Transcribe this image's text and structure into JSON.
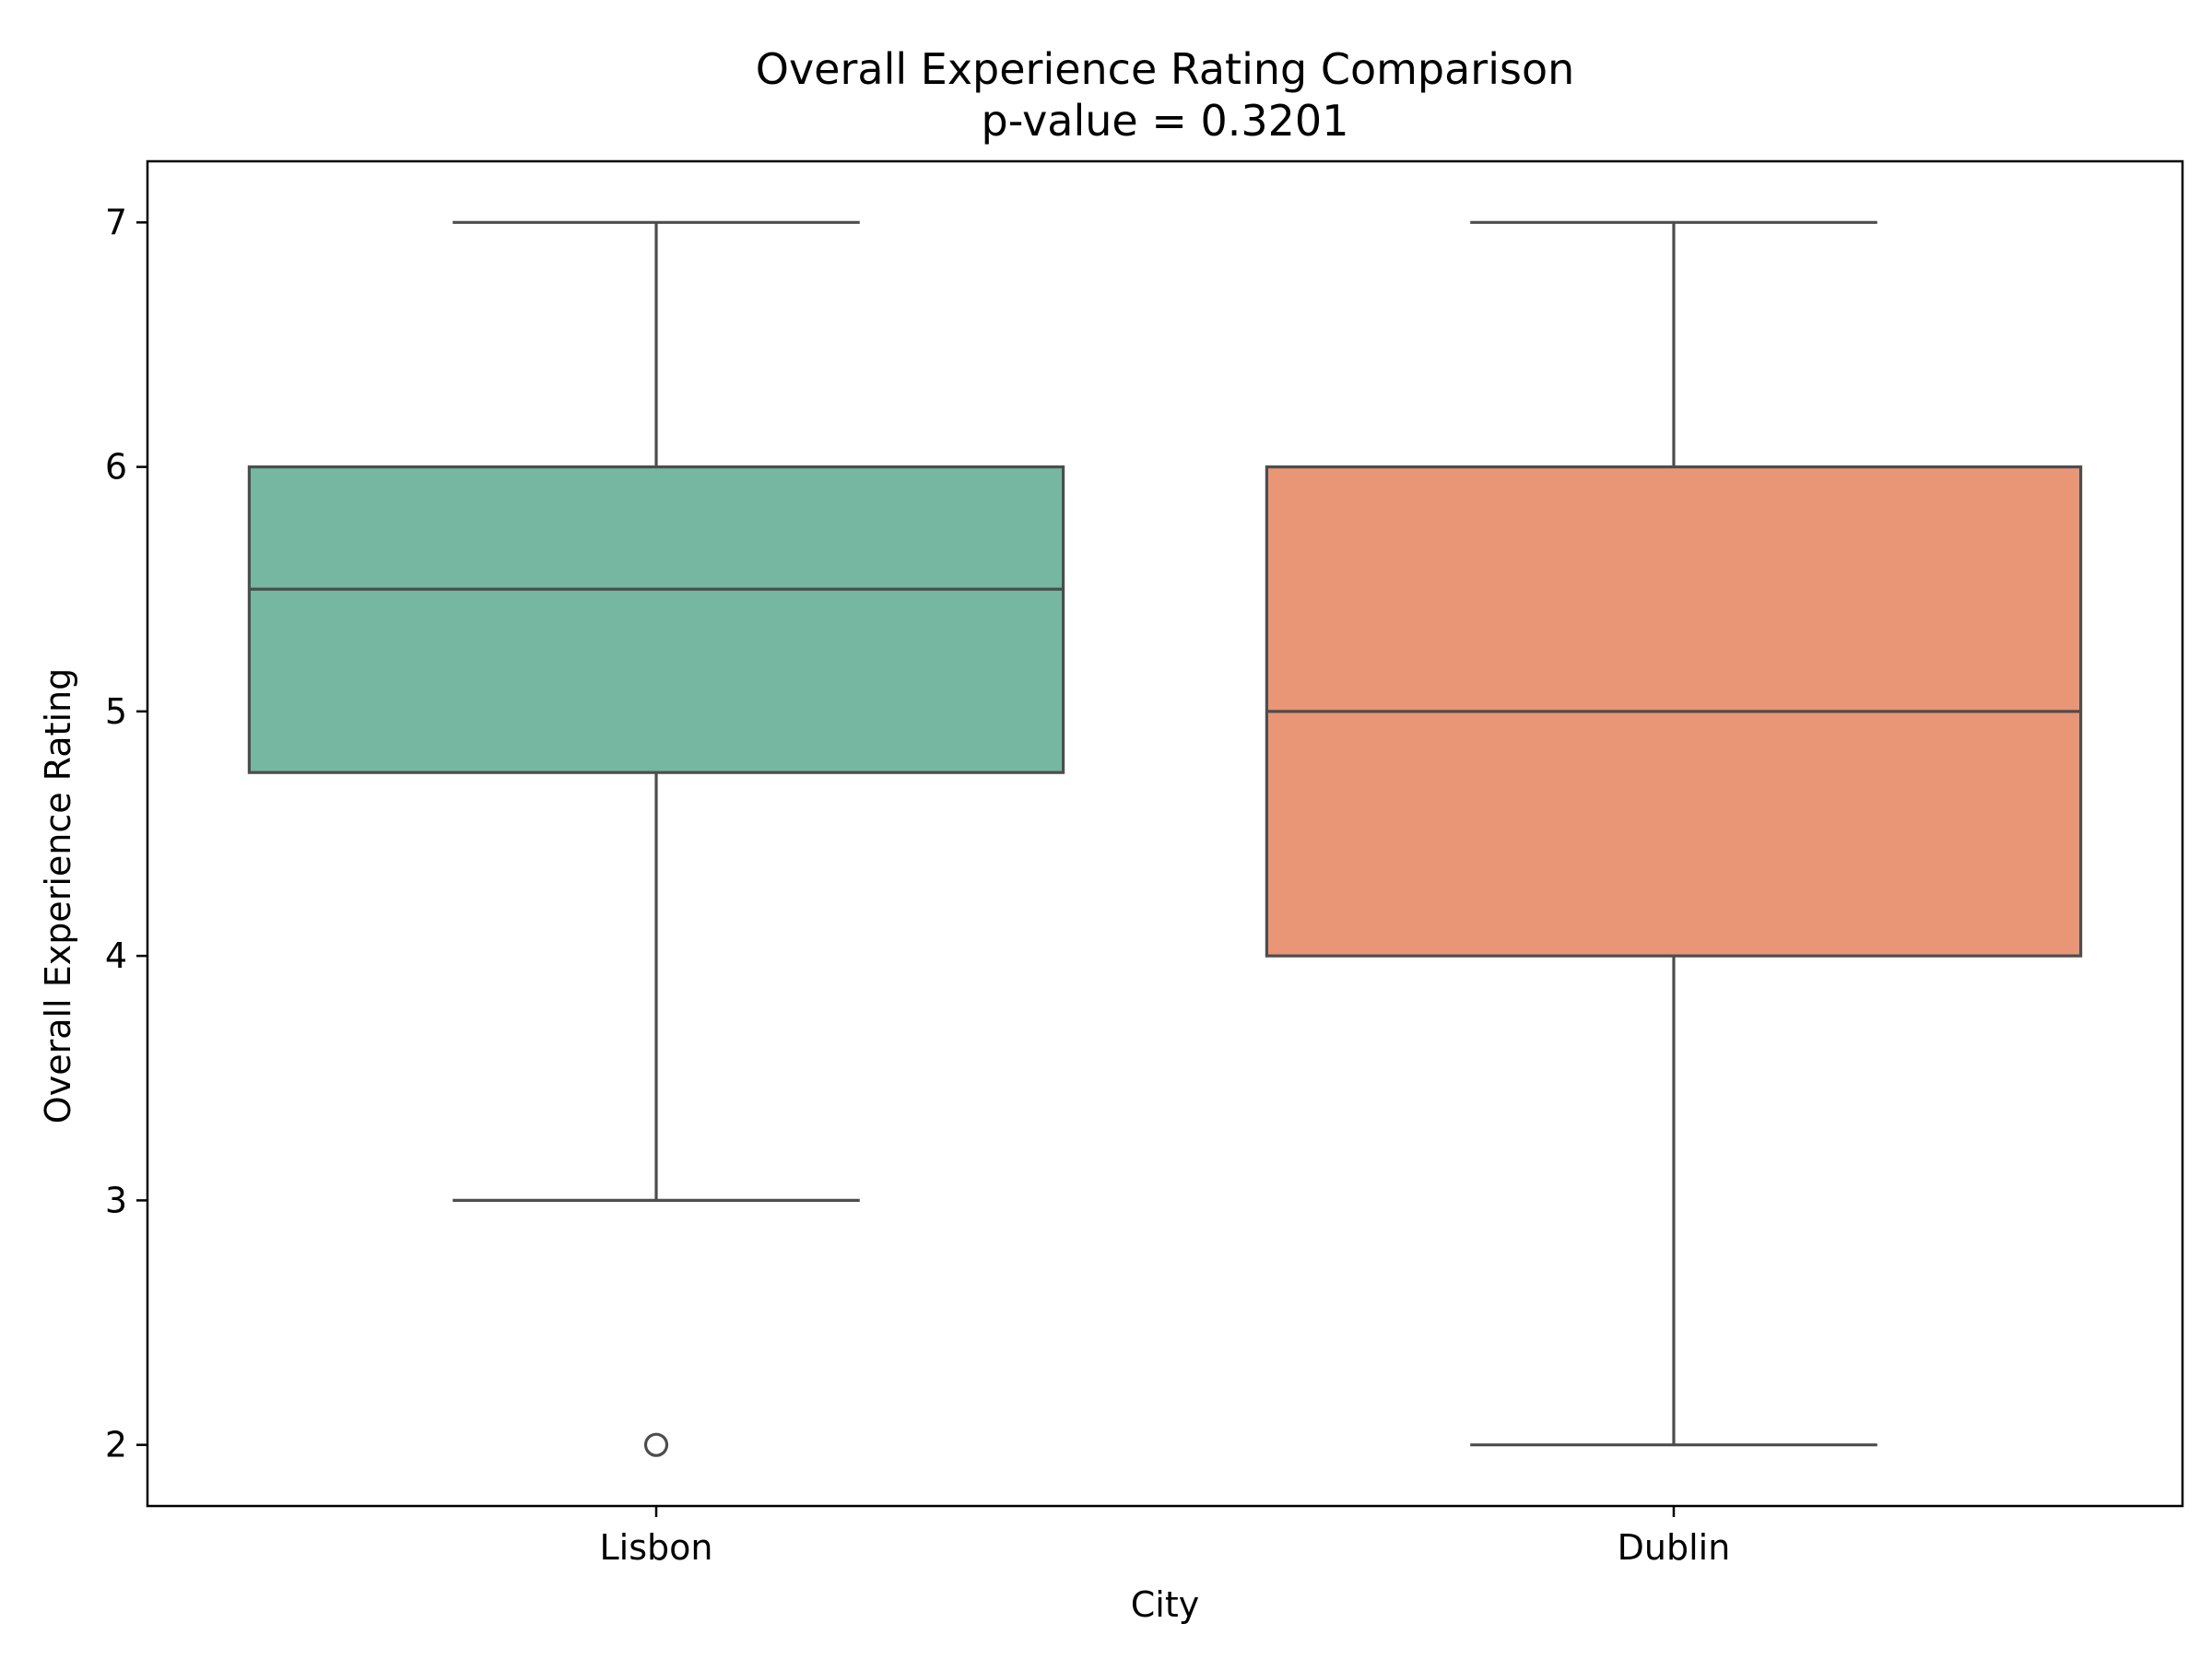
{
  "chart_data": {
    "type": "box",
    "title": "Overall Experience Rating Comparison",
    "subtitle": "p-value = 0.3201",
    "xlabel": "City",
    "ylabel": "Overall Experience Rating",
    "ylim": [
      1.75,
      7.25
    ],
    "yticks": [
      2,
      3,
      4,
      5,
      6,
      7
    ],
    "ytick_labels": [
      "2",
      "3",
      "4",
      "5",
      "6",
      "7"
    ],
    "grid": false,
    "series": [
      {
        "name": "Lisbon",
        "color": "#75b7a1",
        "whisker_low": 3,
        "q1": 4.75,
        "median": 5.5,
        "q3": 6,
        "whisker_high": 7,
        "outliers": [
          2
        ]
      },
      {
        "name": "Dublin",
        "color": "#e89675",
        "whisker_low": 2,
        "q1": 4,
        "median": 5,
        "q3": 6,
        "whisker_high": 7,
        "outliers": []
      }
    ]
  }
}
